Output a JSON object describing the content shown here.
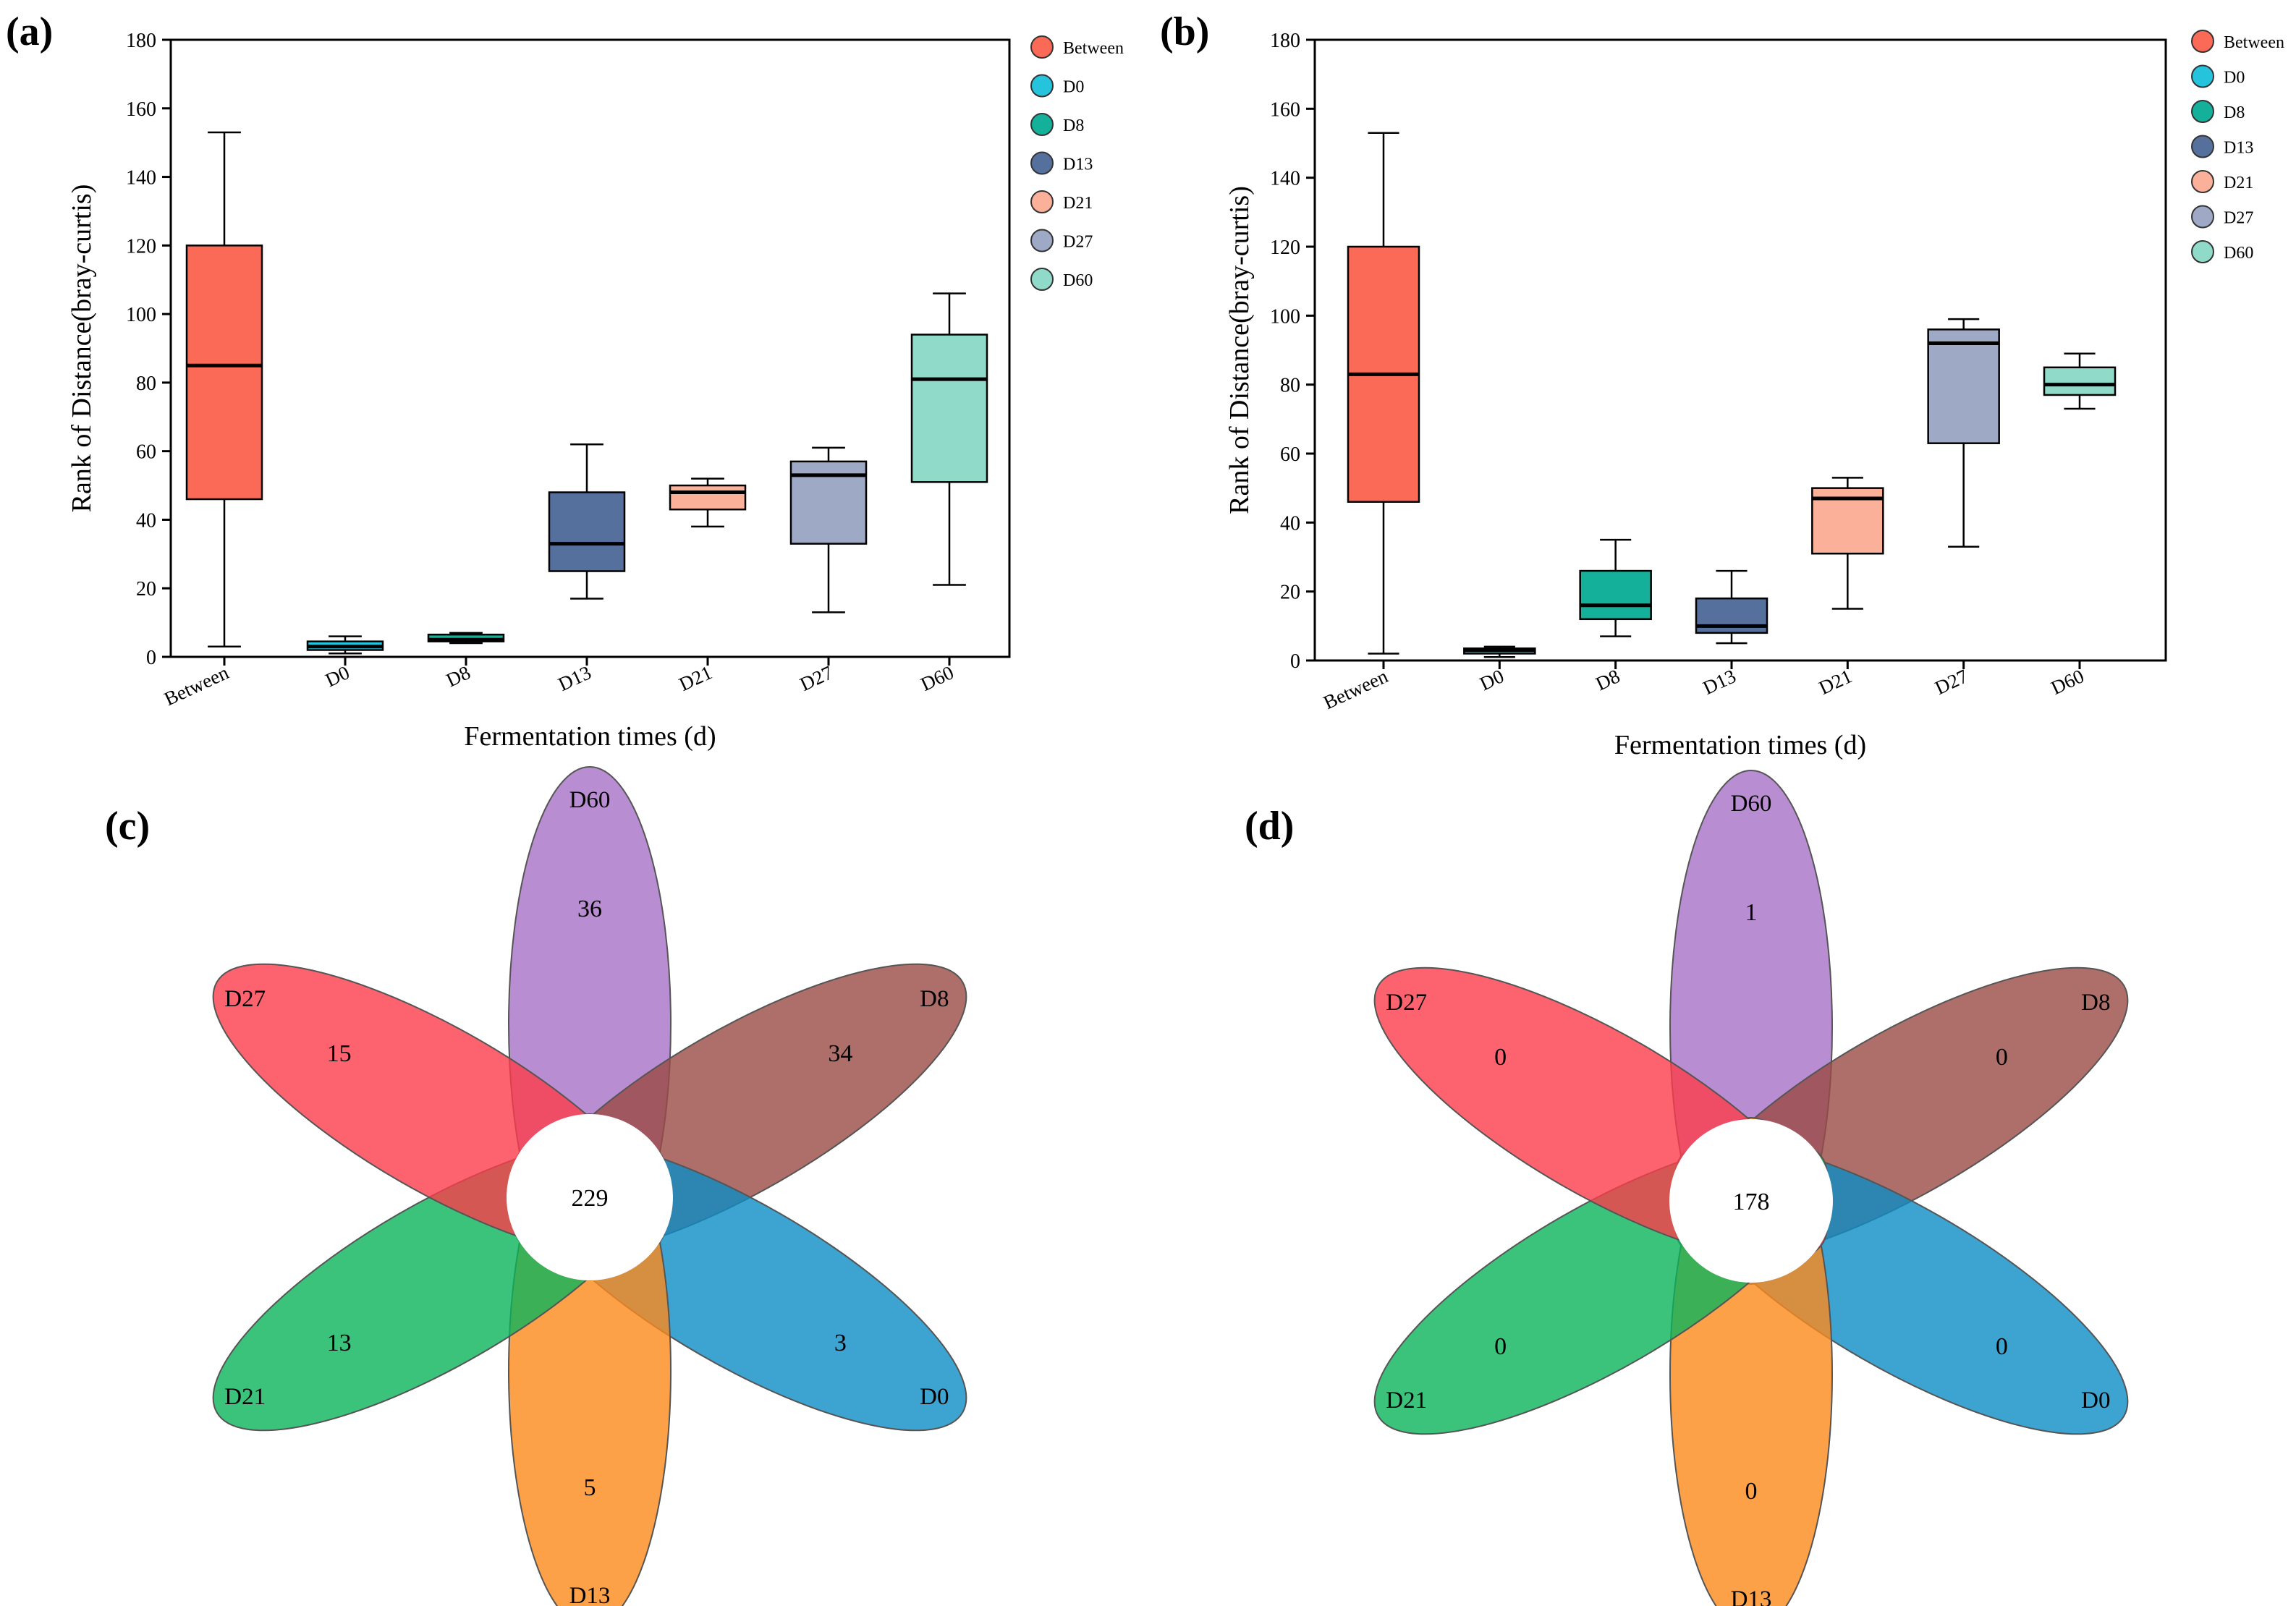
{
  "colors": {
    "Between": "#fa6a56",
    "D0": "#26c4dc",
    "D8": "#14b09a",
    "D13": "#56709e",
    "D21": "#fbb09a",
    "D27": "#9ea9c6",
    "D60": "#8fdac9"
  },
  "petal_colors": {
    "D60": "#a770c6",
    "D8": "#9a4a44",
    "D0": "#0c8cc4",
    "D13": "#fc8a1c",
    "D21": "#0ab45a",
    "D27": "#fc3c4a"
  },
  "chart_data": [
    {
      "panel": "(a)",
      "type": "box",
      "xlabel": "Fermentation times (d)",
      "ylabel": "Rank of Distance(bray-curtis)",
      "ylim": [
        0,
        180
      ],
      "yticks": [
        0,
        20,
        40,
        60,
        80,
        100,
        120,
        140,
        160,
        180
      ],
      "categories": [
        "Between",
        "D0",
        "D8",
        "D13",
        "D21",
        "D27",
        "D60"
      ],
      "boxes": [
        {
          "name": "Between",
          "min": 3,
          "q1": 46,
          "median": 85,
          "q3": 120,
          "max": 153
        },
        {
          "name": "D0",
          "min": 1,
          "q1": 2,
          "median": 3,
          "q3": 4.5,
          "max": 6
        },
        {
          "name": "D8",
          "min": 4,
          "q1": 4.5,
          "median": 5,
          "q3": 6.5,
          "max": 7
        },
        {
          "name": "D13",
          "min": 17,
          "q1": 25,
          "median": 33,
          "q3": 48,
          "max": 62
        },
        {
          "name": "D21",
          "min": 38,
          "q1": 43,
          "median": 48,
          "q3": 50,
          "max": 52
        },
        {
          "name": "D27",
          "min": 13,
          "q1": 33,
          "median": 53,
          "q3": 57,
          "max": 61
        },
        {
          "name": "D60",
          "min": 21,
          "q1": 51,
          "median": 81,
          "q3": 94,
          "max": 106
        }
      ],
      "legend": [
        "Between",
        "D0",
        "D8",
        "D13",
        "D21",
        "D27",
        "D60"
      ],
      "legend_position": "right"
    },
    {
      "panel": "(b)",
      "type": "box",
      "xlabel": "Fermentation times (d)",
      "ylabel": "Rank of Distance(bray-curtis)",
      "ylim": [
        0,
        180
      ],
      "yticks": [
        0,
        20,
        40,
        60,
        80,
        100,
        120,
        140,
        160,
        180
      ],
      "categories": [
        "Between",
        "D0",
        "D8",
        "D13",
        "D21",
        "D27",
        "D60"
      ],
      "boxes": [
        {
          "name": "Between",
          "min": 2,
          "q1": 46,
          "median": 83,
          "q3": 120,
          "max": 153
        },
        {
          "name": "D0",
          "min": 1,
          "q1": 2,
          "median": 3,
          "q3": 3.5,
          "max": 4
        },
        {
          "name": "D8",
          "min": 7,
          "q1": 12,
          "median": 16,
          "q3": 26,
          "max": 35
        },
        {
          "name": "D13",
          "min": 5,
          "q1": 8,
          "median": 10,
          "q3": 18,
          "max": 26
        },
        {
          "name": "D21",
          "min": 15,
          "q1": 31,
          "median": 47,
          "q3": 50,
          "max": 53
        },
        {
          "name": "D27",
          "min": 33,
          "q1": 63,
          "median": 92,
          "q3": 96,
          "max": 99
        },
        {
          "name": "D60",
          "min": 73,
          "q1": 77,
          "median": 80,
          "q3": 85,
          "max": 89
        }
      ],
      "legend": [
        "Between",
        "D0",
        "D8",
        "D13",
        "D21",
        "D27",
        "D60"
      ],
      "legend_position": "right"
    },
    {
      "panel": "(c)",
      "type": "venn",
      "sets": [
        {
          "name": "D60",
          "unique": 36
        },
        {
          "name": "D8",
          "unique": 34
        },
        {
          "name": "D0",
          "unique": 3
        },
        {
          "name": "D13",
          "unique": 5
        },
        {
          "name": "D21",
          "unique": 13
        },
        {
          "name": "D27",
          "unique": 15
        }
      ],
      "shared": 229
    },
    {
      "panel": "(d)",
      "type": "venn",
      "sets": [
        {
          "name": "D60",
          "unique": 1
        },
        {
          "name": "D8",
          "unique": 0
        },
        {
          "name": "D0",
          "unique": 0
        },
        {
          "name": "D13",
          "unique": 0
        },
        {
          "name": "D21",
          "unique": 0
        },
        {
          "name": "D27",
          "unique": 0
        }
      ],
      "shared": 178
    }
  ]
}
